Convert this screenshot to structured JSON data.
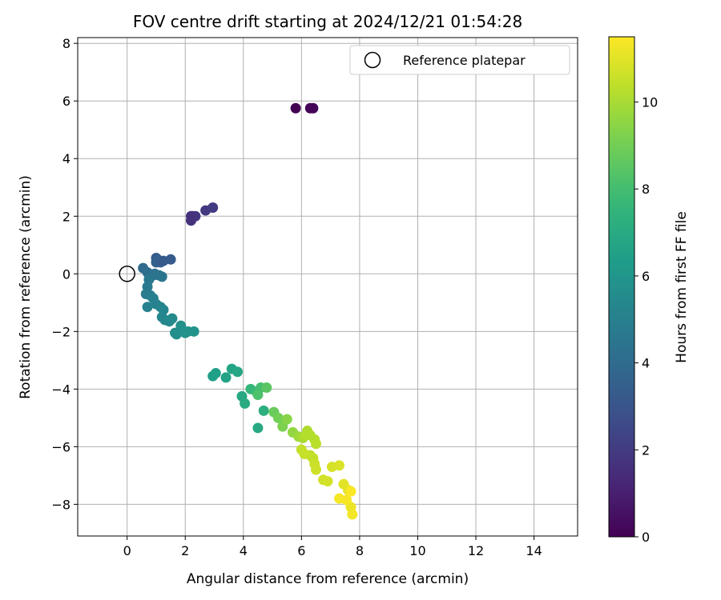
{
  "chart_data": {
    "type": "scatter",
    "title": "FOV centre drift starting at 2024/12/21 01:54:28",
    "xlabel": "Angular distance from reference (arcmin)",
    "ylabel": "Rotation from reference (arcmin)",
    "xlim": [
      -1.7,
      15.5
    ],
    "ylim": [
      -9.1,
      8.2
    ],
    "xticks": [
      0,
      2,
      4,
      6,
      8,
      10,
      12,
      14
    ],
    "yticks": [
      -8,
      -6,
      -4,
      -2,
      0,
      2,
      4,
      6,
      8
    ],
    "grid": true,
    "legend": {
      "placement": "top-right",
      "entries": [
        "Reference platepar"
      ]
    },
    "reference_point": {
      "label": "Reference platepar",
      "x": 0,
      "y": 0
    },
    "colorbar": {
      "label": "Hours from first FF file",
      "colormap": "viridis",
      "range": [
        0,
        11.5
      ],
      "ticks": [
        0,
        2,
        4,
        6,
        8,
        10
      ]
    },
    "series": [
      {
        "x": [
          5.8,
          6.3,
          6.4,
          1.0,
          2.2,
          2.25,
          2.35,
          2.7,
          2.95,
          2.2,
          0.55,
          0.7,
          0.9,
          1.0,
          1.05,
          1.15,
          1.25,
          1.5,
          0.95,
          1.1,
          1.2,
          0.75,
          0.7,
          0.65,
          0.8,
          0.9,
          0.7,
          1.0,
          1.15,
          1.25,
          1.2,
          1.3,
          1.45,
          1.55,
          1.65,
          1.7,
          1.85,
          2.0,
          2.1,
          2.3,
          2.95,
          3.05,
          3.4,
          3.6,
          3.8,
          3.95,
          4.05,
          4.25,
          4.45,
          4.6,
          4.7,
          4.5,
          4.5,
          4.8,
          5.05,
          5.2,
          5.35,
          5.5,
          5.7,
          5.9,
          6.05,
          6.2,
          6.15,
          6.3,
          6.45,
          6.5,
          6.3,
          6.4,
          6.0,
          6.1,
          6.45,
          6.5,
          6.75,
          6.9,
          7.05,
          7.3,
          7.45,
          7.6,
          7.7,
          7.75,
          7.3,
          7.55,
          7.7
        ],
        "y": [
          5.75,
          5.75,
          5.75,
          0.55,
          1.85,
          2.0,
          2.0,
          2.2,
          2.3,
          2.0,
          0.2,
          0.05,
          -0.05,
          0.4,
          0.5,
          0.4,
          0.45,
          0.5,
          0.0,
          -0.05,
          -0.1,
          -0.2,
          -0.45,
          -0.7,
          -0.75,
          -0.85,
          -1.15,
          -1.05,
          -1.15,
          -1.25,
          -1.5,
          -1.6,
          -1.65,
          -1.55,
          -2.05,
          -2.1,
          -1.8,
          -2.05,
          -2.0,
          -2.0,
          -3.55,
          -3.45,
          -3.6,
          -3.3,
          -3.4,
          -4.25,
          -4.5,
          -4.0,
          -4.1,
          -3.95,
          -4.75,
          -5.35,
          -4.2,
          -3.95,
          -4.8,
          -5.0,
          -5.3,
          -5.05,
          -5.5,
          -5.65,
          -5.7,
          -5.45,
          -5.6,
          -5.6,
          -5.75,
          -5.9,
          -6.3,
          -6.4,
          -6.1,
          -6.25,
          -6.6,
          -6.8,
          -7.15,
          -7.2,
          -6.7,
          -6.65,
          -7.3,
          -7.5,
          -8.1,
          -8.35,
          -7.8,
          -7.85,
          -7.55
        ],
        "hours": [
          0.0,
          0.05,
          0.1,
          3.2,
          1.6,
          1.7,
          1.8,
          1.9,
          2.0,
          1.65,
          4.0,
          4.1,
          4.2,
          3.6,
          3.5,
          3.4,
          3.3,
          3.3,
          4.3,
          4.4,
          4.5,
          4.6,
          4.7,
          4.8,
          4.9,
          5.0,
          5.05,
          5.1,
          5.2,
          5.25,
          5.3,
          5.35,
          5.4,
          5.5,
          5.6,
          5.7,
          5.75,
          5.8,
          5.85,
          5.9,
          6.4,
          6.5,
          6.6,
          6.7,
          6.8,
          6.9,
          7.0,
          7.6,
          7.8,
          8.0,
          7.2,
          6.9,
          8.2,
          8.5,
          8.8,
          9.0,
          9.2,
          9.4,
          9.6,
          9.8,
          10.0,
          10.1,
          10.2,
          10.2,
          10.2,
          10.3,
          10.4,
          10.45,
          10.5,
          10.55,
          10.6,
          10.65,
          10.7,
          10.75,
          10.8,
          10.9,
          11.0,
          11.1,
          11.2,
          11.3,
          11.35,
          11.4,
          11.45
        ]
      }
    ]
  }
}
